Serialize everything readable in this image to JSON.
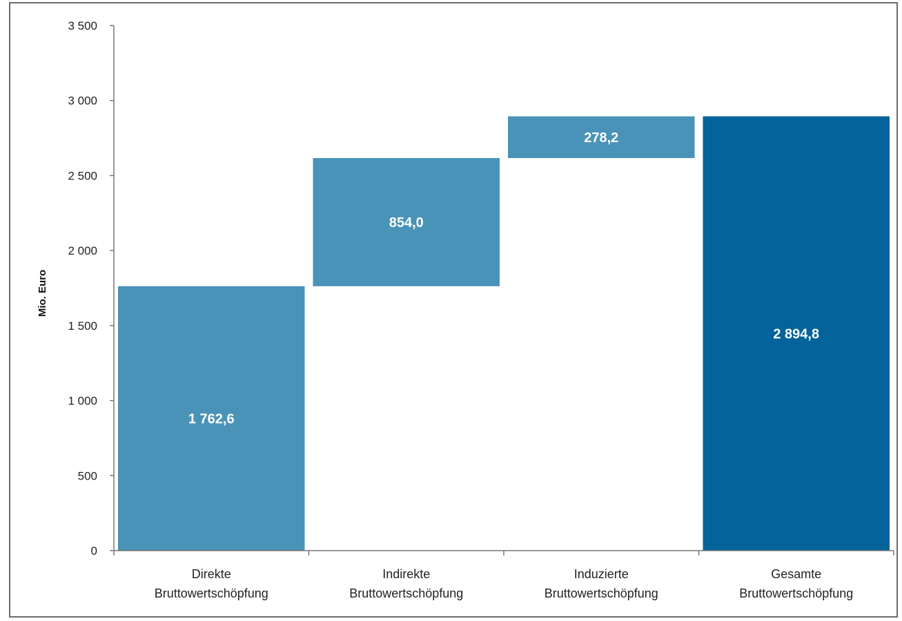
{
  "chart_data": {
    "type": "bar",
    "subtype": "waterfall",
    "title": "",
    "xlabel": "",
    "ylabel": "Mio. Euro",
    "ylim": [
      0,
      3500
    ],
    "yticks": [
      0,
      500,
      1000,
      1500,
      2000,
      2500,
      3000,
      3500
    ],
    "ytick_labels": [
      "0",
      "500",
      "1 000",
      "1 500",
      "2 000",
      "2 500",
      "3 000",
      "3 500"
    ],
    "grid": false,
    "legend": "none",
    "categories": [
      [
        "Direkte",
        "Bruttowertschöpfung"
      ],
      [
        "Indirekte",
        "Bruttowertschöpfung"
      ],
      [
        "Induzierte",
        "Bruttowertschöpfung"
      ],
      [
        "Gesamte",
        "Bruttowertschöpfung"
      ]
    ],
    "bars": [
      {
        "base": 0,
        "value": 1762.6,
        "label": "1 762,6",
        "color": "#4a93b8"
      },
      {
        "base": 1762.6,
        "value": 854.0,
        "label": "854,0",
        "color": "#4a93b8"
      },
      {
        "base": 2616.6,
        "value": 278.2,
        "label": "278,2",
        "color": "#4a93b8"
      },
      {
        "base": 0,
        "value": 2894.8,
        "label": "2 894,8",
        "color": "#03639a"
      }
    ]
  }
}
